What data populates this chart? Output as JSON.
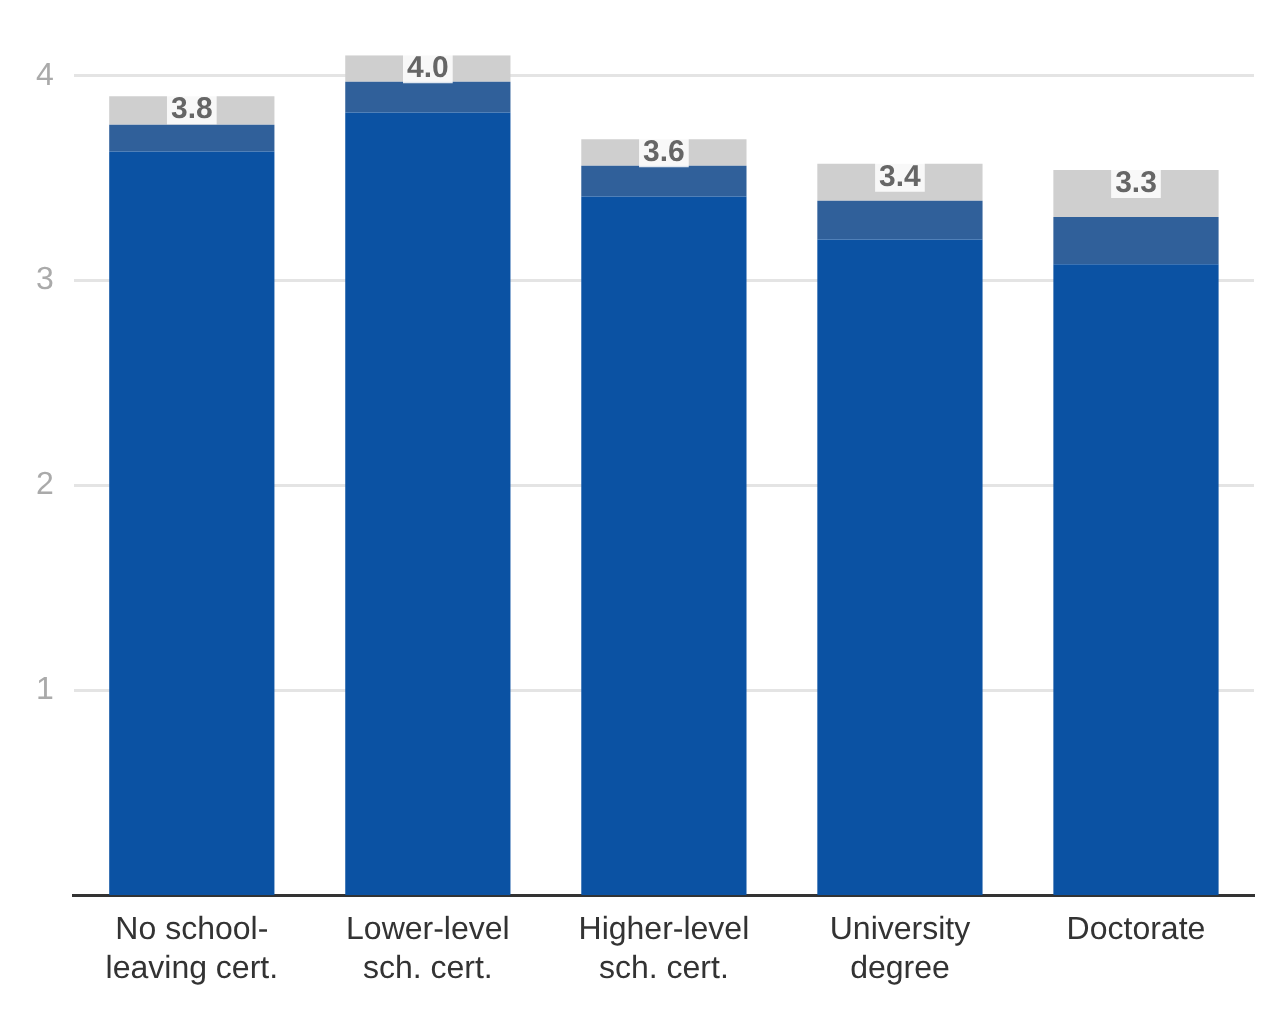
{
  "chart_data": {
    "type": "bar",
    "stacked": true,
    "categories": [
      "No school-leaving cert.",
      "Lower-level sch. cert.",
      "Higher-level sch. cert.",
      "University degree",
      "Doctorate"
    ],
    "series": [
      {
        "color": "#0b52a3",
        "values": [
          3.63,
          3.82,
          3.41,
          3.2,
          3.08
        ]
      },
      {
        "color": "#30609a",
        "values": [
          0.13,
          0.15,
          0.15,
          0.19,
          0.23
        ]
      },
      {
        "color": "#cfcfcf",
        "values": [
          0.14,
          0.13,
          0.13,
          0.18,
          0.23
        ]
      }
    ],
    "annotations": [
      {
        "text": "3.8",
        "x": "No school-leaving cert.",
        "y": 3.9
      },
      {
        "text": "4.0",
        "x": "Lower-level sch. cert.",
        "y": 4.1
      },
      {
        "text": "3.6",
        "x": "Higher-level sch. cert.",
        "y": 3.69
      },
      {
        "text": "3.4",
        "x": "University degree",
        "y": 3.57
      },
      {
        "text": "3.3",
        "x": "Doctorate",
        "y": 3.54
      }
    ],
    "ylim": [
      0,
      4.1
    ],
    "yticks": [
      1,
      2,
      3,
      4
    ],
    "grid": "y",
    "legend": false
  }
}
